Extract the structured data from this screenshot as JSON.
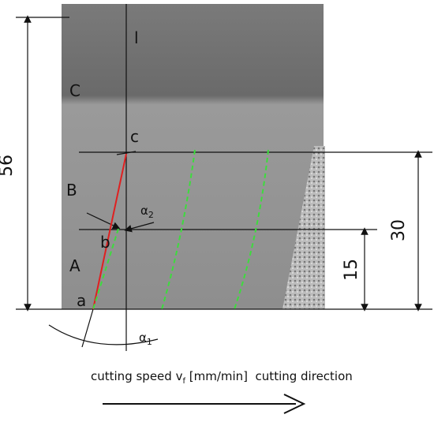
{
  "dimensions": {
    "total": "56",
    "upper": "30",
    "lower": "15"
  },
  "regions": {
    "c": "C",
    "b": "B",
    "a": "A"
  },
  "points": {
    "l": "l",
    "c": "c",
    "b": "b",
    "a": "a"
  },
  "angles": {
    "alpha2": {
      "symbol": "α",
      "index": "2"
    },
    "alpha1": {
      "symbol": "α",
      "index": "1"
    }
  },
  "caption": {
    "before": "cutting speed v",
    "subscript": "f",
    "after": " [mm/min]  cutting direction"
  }
}
